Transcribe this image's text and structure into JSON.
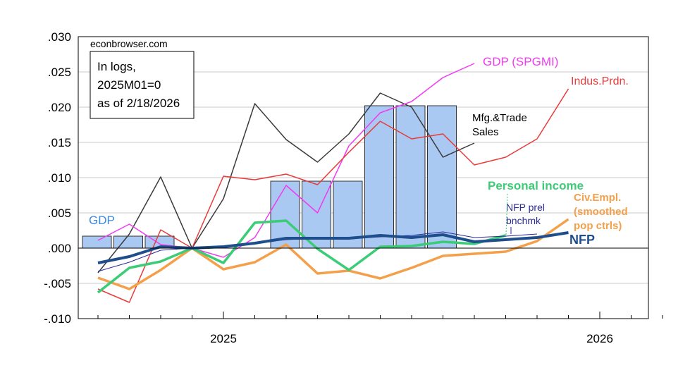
{
  "chart_data": {
    "type": "line",
    "source_label": "econbrowser.com",
    "note_lines": [
      "In logs,",
      "2025M01=0",
      "as of 2/18/2026"
    ],
    "x_ticks": [
      "2025",
      "2026"
    ],
    "y_ticks": [
      ".030",
      ".025",
      ".020",
      ".015",
      ".010",
      ".005",
      ".000",
      "-.005",
      "-.010"
    ],
    "ylim": [
      -0.01,
      0.03
    ],
    "x_months": [
      "2024M09",
      "2024M10",
      "2024M11",
      "2024M12",
      "2025M01",
      "2025M02",
      "2025M03",
      "2025M04",
      "2025M05",
      "2025M06",
      "2025M07",
      "2025M08",
      "2025M09",
      "2025M10",
      "2025M11",
      "2025M12",
      "2026M01",
      "2026M02",
      "2026M03",
      "2026M04"
    ],
    "gdp_bars": [
      {
        "quarter": "2024Q4",
        "value": 0.0017
      },
      {
        "quarter": "2025Q2",
        "value": 0.0095
      },
      {
        "quarter": "2025Q3",
        "value": 0.0202
      }
    ],
    "series": [
      {
        "name": "GDP (SPGMI)",
        "color": "#f03cf0",
        "values": [
          0.0011,
          0.0034,
          0.0005,
          0.0,
          -0.0013,
          0.0015,
          0.0089,
          0.005,
          0.0145,
          0.0192,
          0.0208,
          0.0242,
          0.0262
        ]
      },
      {
        "name": "Indus.Prdn.",
        "color": "#e83b3b",
        "values": [
          -0.0058,
          -0.0077,
          0.0026,
          0.0,
          0.0102,
          0.0097,
          0.0105,
          0.009,
          0.0136,
          0.018,
          0.0155,
          0.0162,
          0.0118,
          0.0129,
          0.0155,
          0.0226
        ]
      },
      {
        "name": "Mfg.&Trade Sales",
        "color": "#3a3a3a",
        "values": [
          -0.0035,
          0.002,
          0.0101,
          0.0,
          0.007,
          0.0205,
          0.0154,
          0.0122,
          0.0162,
          0.022,
          0.02,
          0.0129,
          0.0149
        ]
      },
      {
        "name": "Personal income",
        "color": "#3ccc78",
        "values": [
          -0.0063,
          -0.0028,
          -0.0019,
          0.0,
          -0.0021,
          0.0036,
          0.0039,
          -0.0001,
          -0.0031,
          0.0002,
          0.0003,
          0.0009,
          0.0006,
          0.0018
        ]
      },
      {
        "name": "Civ.Empl. (smoothed pop ctrls)",
        "color": "#f4a04a",
        "values": [
          -0.0042,
          -0.0058,
          -0.0031,
          0.0,
          -0.003,
          -0.002,
          0.0005,
          -0.0036,
          -0.0032,
          -0.0043,
          -0.0028,
          -0.0011,
          -0.0008,
          -0.0005,
          0.001,
          0.0041
        ]
      },
      {
        "name": "NFP prel bnchmk",
        "color": "#2a2a9a",
        "values": [
          -0.0033,
          -0.002,
          -0.0003,
          0.0,
          0.0003,
          0.0007,
          0.0012,
          0.0014,
          0.0013,
          0.0016,
          0.0018,
          0.0023,
          0.0015,
          0.0017,
          0.002
        ]
      },
      {
        "name": "NFP",
        "color": "#1f4e8c",
        "values": [
          -0.0021,
          -0.0012,
          0.0002,
          0.0,
          0.0002,
          0.0007,
          0.0014,
          0.0014,
          0.0014,
          0.0018,
          0.0015,
          0.0019,
          0.0009,
          0.0012,
          0.0015,
          0.0022
        ]
      }
    ],
    "labels": {
      "gdp": "GDP",
      "gdp_spgmi": "GDP (SPGMI)",
      "indus": "Indus.Prdn.",
      "mfg_1": "Mfg.&Trade",
      "mfg_2": "Sales",
      "pi": "Personal income",
      "civ_1": "Civ.Empl.",
      "civ_2": "(smoothed",
      "civ_3": "pop ctrls)",
      "nfpb_1": "NFP prel",
      "nfpb_2": "bnchmk",
      "nfp": "NFP"
    },
    "colors": {
      "gdp_bar_fill": "#a9c8f2",
      "gdp_label": "#3a8ae0",
      "grid": "#c8c8c8",
      "frame": "#000000"
    }
  }
}
